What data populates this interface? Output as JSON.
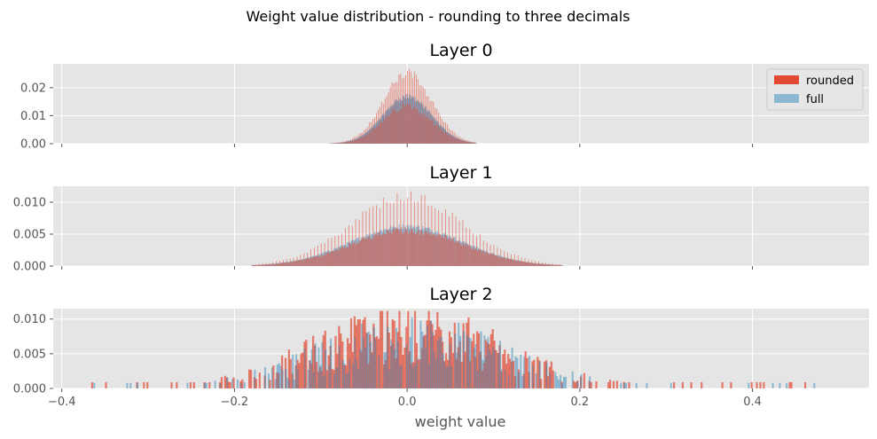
{
  "figure": {
    "suptitle": "Weight value distribution - rounding to three decimals",
    "xlabel": "weight value",
    "legend": {
      "rounded": "rounded",
      "full": "full",
      "placement": "upper right (top panel)"
    },
    "colors": {
      "rounded": "#E24A33",
      "full": "#348ABD",
      "overlap": "#9B5F67",
      "panel_bg": "#E5E5E5",
      "grid": "#FFFFFF"
    }
  },
  "chart_data": [
    {
      "type": "histogram",
      "title": "Layer 0",
      "xlim": [
        -0.41,
        0.535
      ],
      "ylim": [
        0,
        0.0285
      ],
      "xticks": [
        -0.4,
        -0.2,
        0.0,
        0.2,
        0.4
      ],
      "xtick_labels": [],
      "yticks": [
        0.0,
        0.01,
        0.02
      ],
      "ytick_labels": [
        "0.00",
        "0.01",
        "0.02"
      ],
      "grid": true,
      "series": [
        {
          "name": "rounded",
          "kind": "spiky",
          "center": 0.0,
          "sigma": 0.028,
          "peak": 0.0135,
          "spike_peak": 0.027,
          "spike_step": 0.002,
          "xmin": -0.09,
          "xmax": 0.08
        },
        {
          "name": "full",
          "kind": "smooth",
          "center": 0.0,
          "sigma": 0.028,
          "peak": 0.0168,
          "xmin": -0.09,
          "xmax": 0.08
        }
      ]
    },
    {
      "type": "histogram",
      "title": "Layer 1",
      "xlim": [
        -0.41,
        0.535
      ],
      "ylim": [
        0,
        0.0125
      ],
      "xticks": [
        -0.4,
        -0.2,
        0.0,
        0.2,
        0.4
      ],
      "xtick_labels": [],
      "yticks": [
        0.0,
        0.005,
        0.01
      ],
      "ytick_labels": [
        "0.000",
        "0.005",
        "0.010"
      ],
      "grid": true,
      "series": [
        {
          "name": "rounded",
          "kind": "spiky",
          "center": 0.0,
          "sigma": 0.065,
          "peak": 0.0056,
          "spike_peak": 0.0118,
          "spike_step": 0.004,
          "xmin": -0.18,
          "xmax": 0.18
        },
        {
          "name": "full",
          "kind": "smooth",
          "center": 0.0,
          "sigma": 0.065,
          "peak": 0.0062,
          "xmin": -0.18,
          "xmax": 0.18
        }
      ]
    },
    {
      "type": "histogram",
      "title": "Layer 2",
      "xlim": [
        -0.41,
        0.535
      ],
      "ylim": [
        0,
        0.0115
      ],
      "xticks": [
        -0.4,
        -0.2,
        0.0,
        0.2,
        0.4
      ],
      "xtick_labels": [
        "−0.4",
        "−0.2",
        "0.0",
        "0.2",
        "0.4"
      ],
      "yticks": [
        0.0,
        0.005,
        0.01
      ],
      "ytick_labels": [
        "0.000",
        "0.005",
        "0.010"
      ],
      "grid": true,
      "series": [
        {
          "name": "rounded",
          "kind": "sparse",
          "center": 0.0,
          "sigma": 0.11,
          "peak": 0.0085,
          "xmin": -0.37,
          "xmax": 0.49
        },
        {
          "name": "full",
          "kind": "sparse",
          "center": 0.0,
          "sigma": 0.11,
          "peak": 0.0085,
          "xmin": -0.37,
          "xmax": 0.49
        }
      ]
    }
  ]
}
